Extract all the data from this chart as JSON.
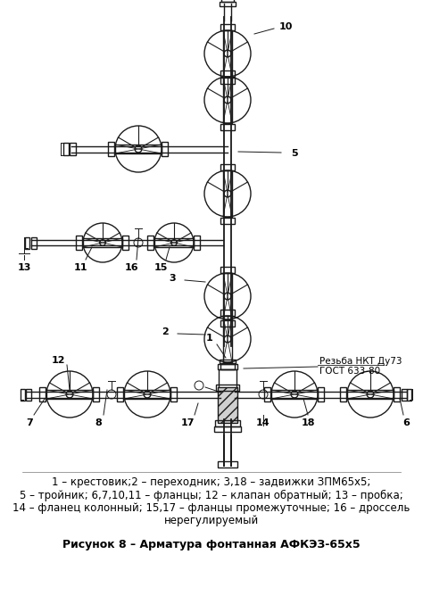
{
  "caption_line1": "1 – крестовик;2 – переходник; 3,18 – задвижки ЗПМ65х5;",
  "caption_line2": "5 – тройник; 6,7,10,11 – фланцы; 12 – клапан обратный; 13 – пробка;",
  "caption_line3": "14 – фланец колонный; 15,17 – фланцы промежуточные; 16 – дроссель",
  "caption_line4": "нерегулируемый",
  "figure_title": "Рисунок 8 – Арматура фонтанная АФКЭЗ-65х5",
  "bg_color": "#ffffff",
  "line_color": "#1a1a1a",
  "text_color": "#000000",
  "font_size_caption": 8.5,
  "font_size_title": 9.0,
  "font_size_labels": 8.0
}
